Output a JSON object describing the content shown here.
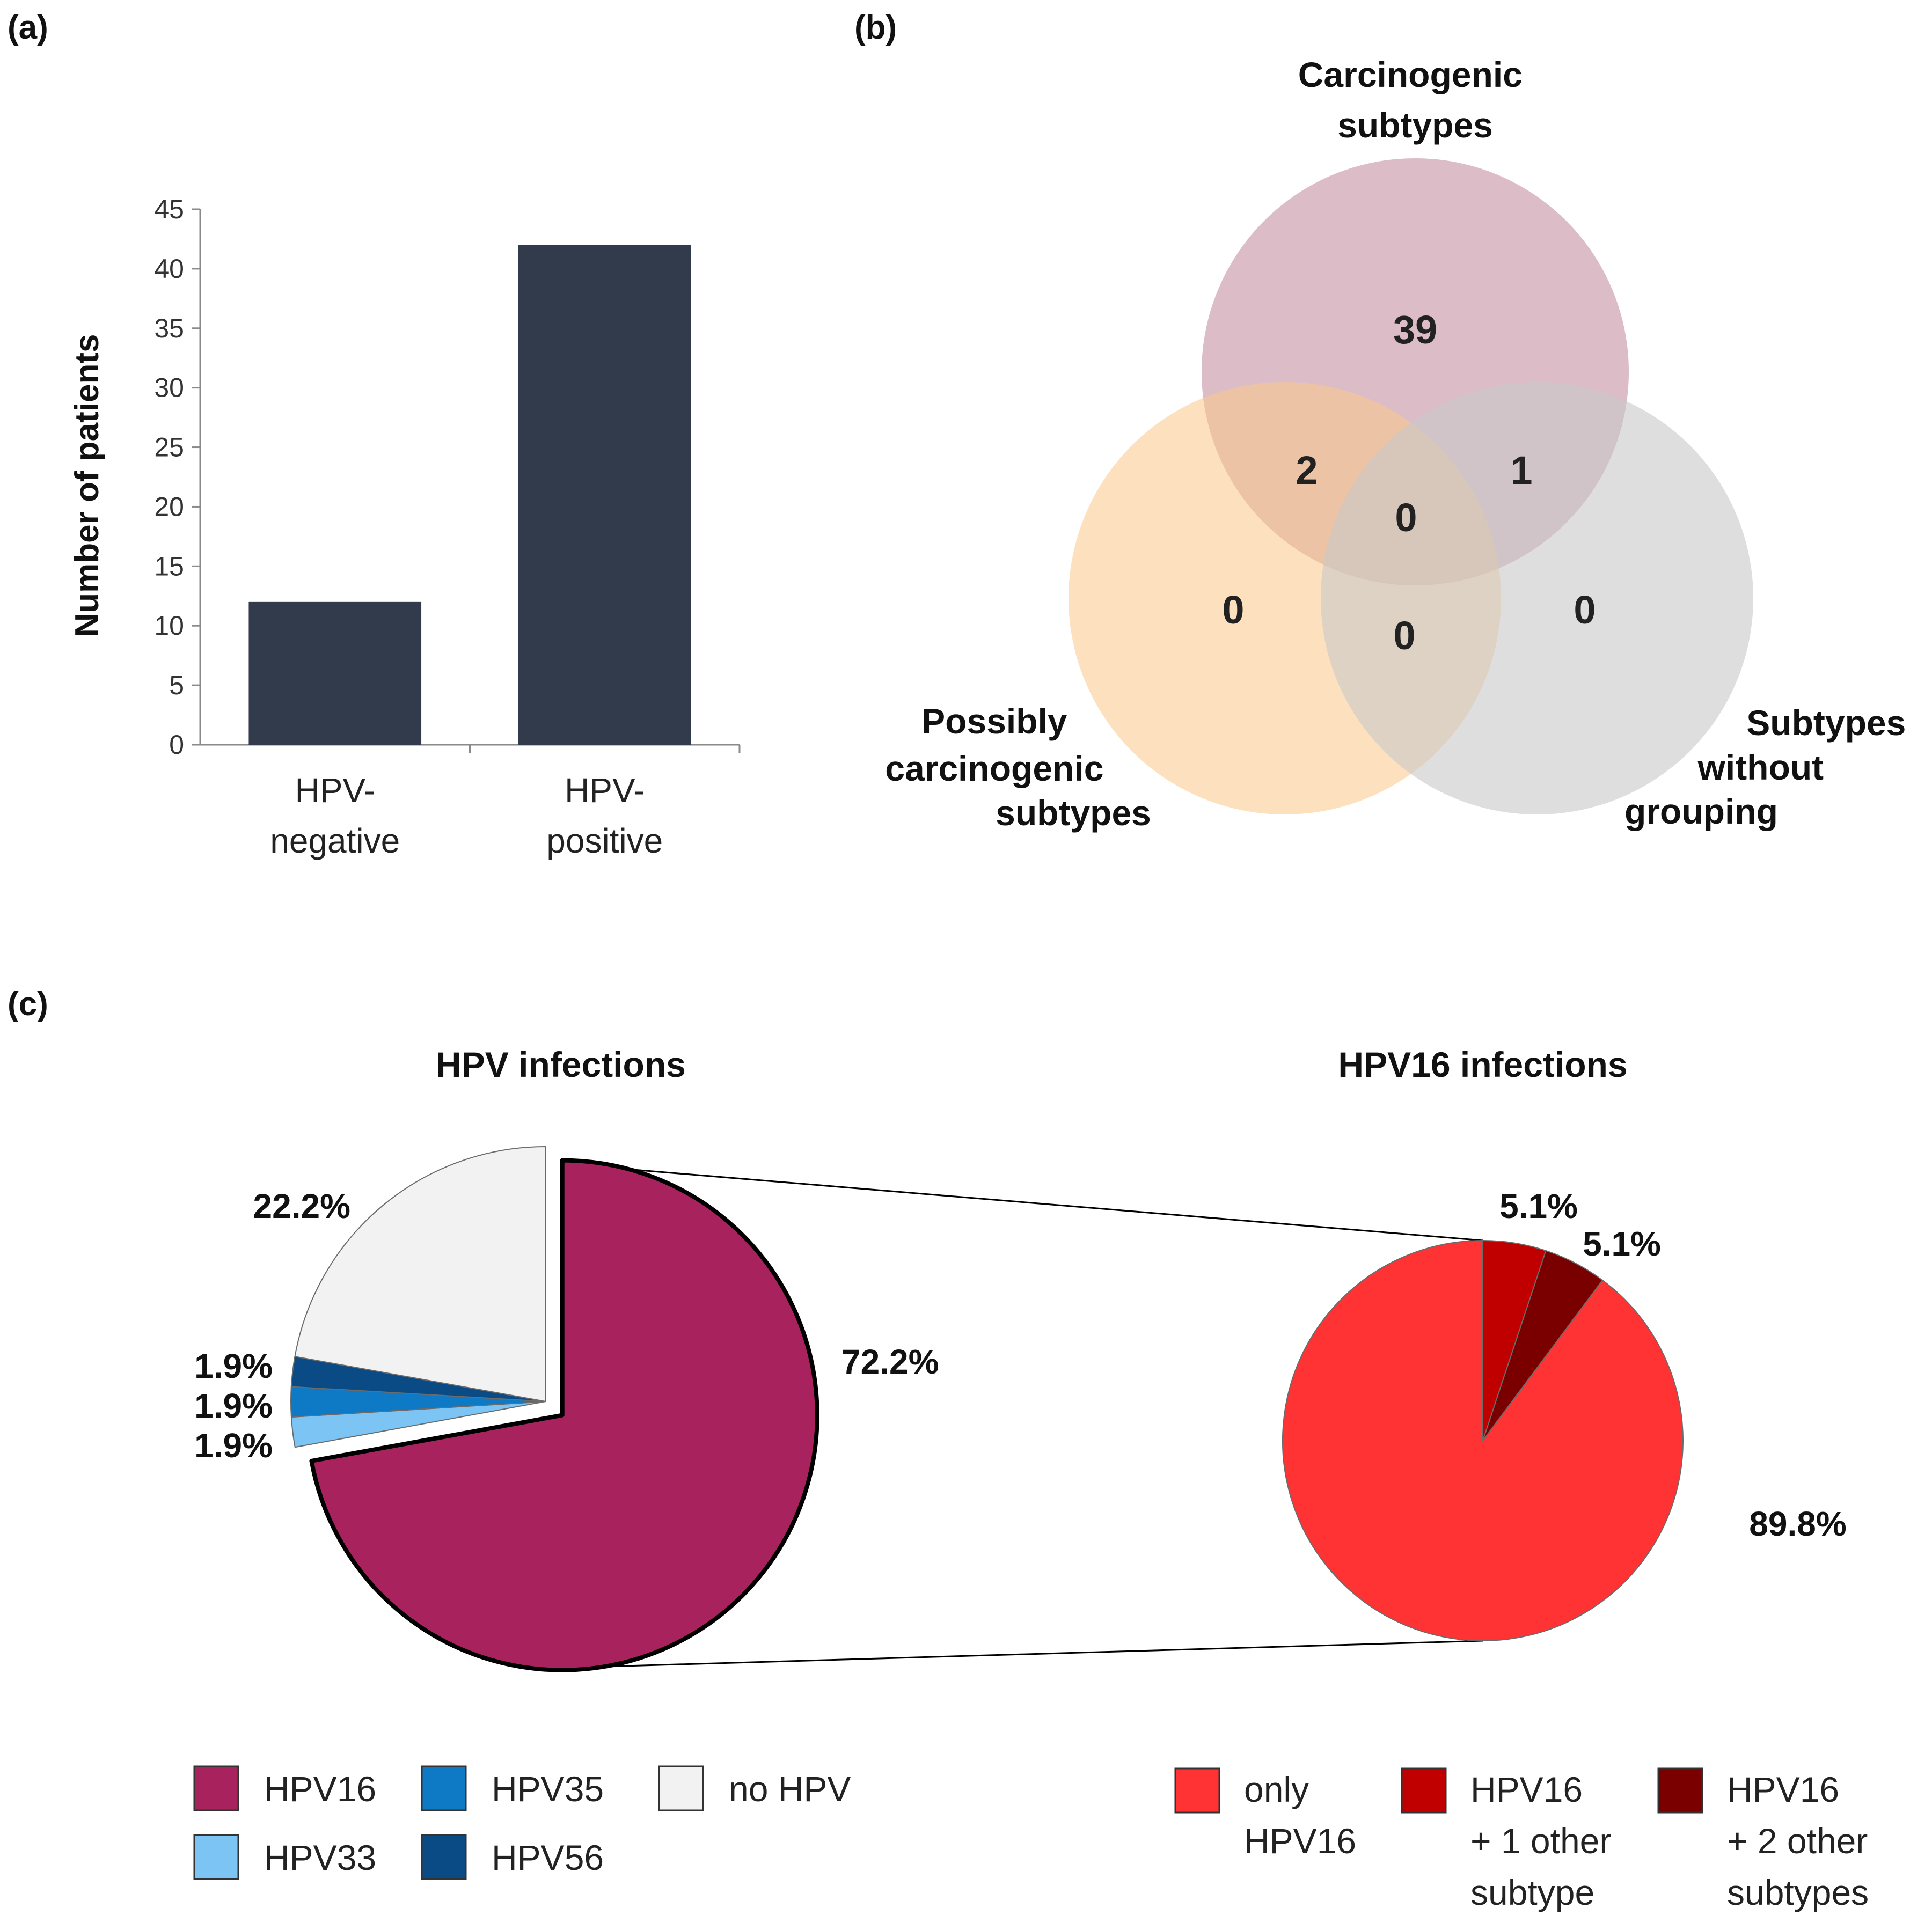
{
  "panels": {
    "a": "(a)",
    "b": "(b)",
    "c": "(c)"
  },
  "colors": {
    "bar": "#323b4c",
    "venn_carcinogenic": "#b97b8f",
    "venn_possibly": "#fbc98a",
    "venn_without": "#c8c8c8",
    "hpv16": "#a8235e",
    "hpv33": "#7cc4f4",
    "hpv35": "#0e79c4",
    "hpv56": "#0b4b85",
    "no_hpv": "#f2f2f2",
    "only_hpv16": "#ff3333",
    "hpv16_plus1": "#c00000",
    "hpv16_plus2": "#7a0000"
  },
  "chart_data": [
    {
      "id": "bar-chart",
      "type": "bar",
      "title": "",
      "ylabel": "Number of patients",
      "xlabel": "",
      "ylim": [
        0,
        45
      ],
      "yticks": [
        "0",
        "5",
        "10",
        "15",
        "20",
        "25",
        "30",
        "35",
        "40",
        "45"
      ],
      "categories": [
        [
          "HPV-",
          "negative"
        ],
        [
          "HPV-",
          "positive"
        ]
      ],
      "values": [
        12,
        42
      ]
    },
    {
      "id": "venn",
      "type": "venn",
      "sets": [
        {
          "key": "carcinogenic",
          "label": [
            "Carcinogenic",
            "subtypes"
          ]
        },
        {
          "key": "possibly",
          "label": [
            "Possibly",
            "carcinogenic",
            "subtypes"
          ]
        },
        {
          "key": "without",
          "label": [
            "Subtypes",
            "without",
            "grouping"
          ]
        }
      ],
      "regions": {
        "carcinogenic_only": "39",
        "carcinogenic_possibly": "2",
        "carcinogenic_without": "1",
        "all_three": "0",
        "possibly_only": "0",
        "possibly_without": "0",
        "without_only": "0"
      }
    },
    {
      "id": "pie-hpv",
      "type": "pie",
      "title": "HPV infections",
      "slices": [
        {
          "label": "HPV16",
          "value": 72.2,
          "text": "72.2%",
          "color": "#a8235e"
        },
        {
          "label": "HPV33",
          "value": 1.9,
          "text": "1.9%",
          "color": "#7cc4f4"
        },
        {
          "label": "HPV35",
          "value": 1.9,
          "text": "1.9%",
          "color": "#0e79c4"
        },
        {
          "label": "HPV56",
          "value": 1.9,
          "text": "1.9%",
          "color": "#0b4b85"
        },
        {
          "label": "no HPV",
          "value": 22.2,
          "text": "22.2%",
          "color": "#f2f2f2"
        }
      ]
    },
    {
      "id": "pie-hpv16",
      "type": "pie",
      "title": "HPV16 infections",
      "slices": [
        {
          "label": "HPV16 + 1 other subtype",
          "value": 5.1,
          "text": "5.1%",
          "color": "#c00000"
        },
        {
          "label": "HPV16 + 2 other subtypes",
          "value": 5.1,
          "text": "5.1%",
          "color": "#7a0000"
        },
        {
          "label": "only HPV16",
          "value": 89.8,
          "text": "89.8%",
          "color": "#ff3333"
        }
      ]
    }
  ],
  "legend_left": [
    {
      "label": "HPV16",
      "color": "#a8235e"
    },
    {
      "label": "HPV35",
      "color": "#0e79c4"
    },
    {
      "label": "no HPV",
      "color": "#f2f2f2"
    },
    {
      "label": "HPV33",
      "color": "#7cc4f4"
    },
    {
      "label": "HPV56",
      "color": "#0b4b85"
    }
  ],
  "legend_right": [
    {
      "lines": [
        "only",
        "HPV16"
      ],
      "color": "#ff3333"
    },
    {
      "lines": [
        "HPV16",
        "+ 1 other",
        "subtype"
      ],
      "color": "#c00000"
    },
    {
      "lines": [
        "HPV16",
        "+ 2 other",
        "subtypes"
      ],
      "color": "#7a0000"
    }
  ]
}
